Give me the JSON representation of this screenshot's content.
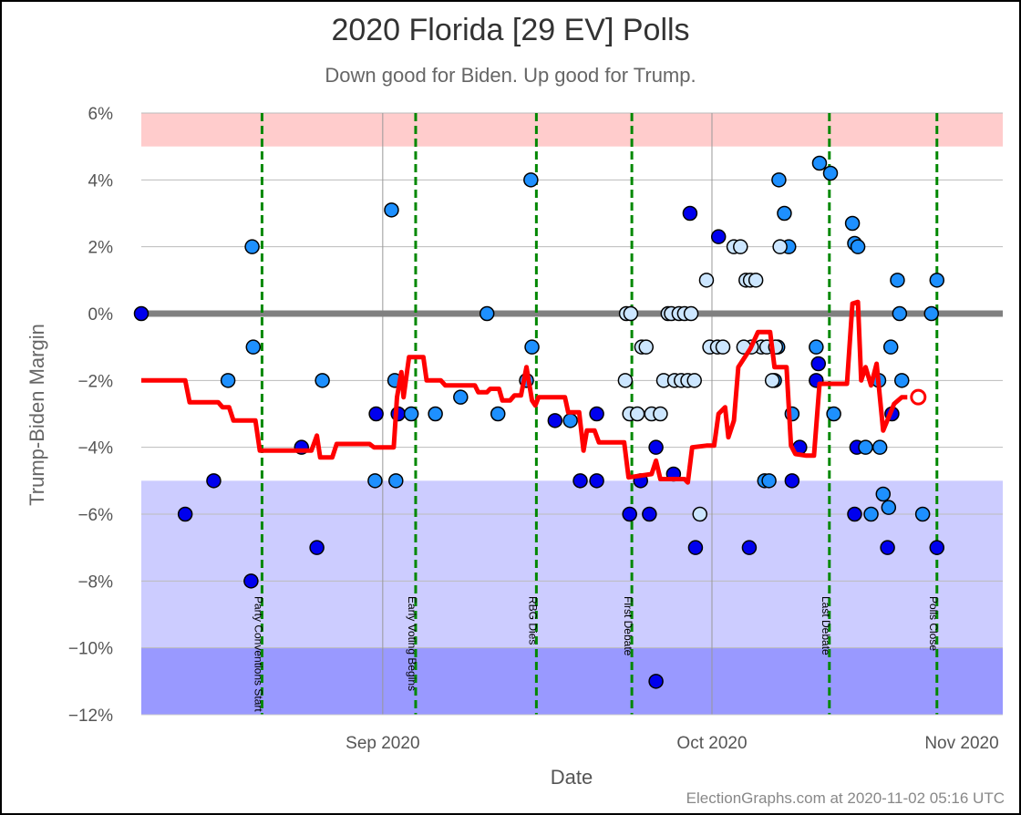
{
  "title": "2020 Florida [29 EV] Polls",
  "subtitle": "Down good for Biden. Up good for Trump.",
  "credit": "ElectionGraphs.com at 2020-11-02 05:16 UTC",
  "chart_data": {
    "type": "scatter",
    "title": "2020 Florida [29 EV] Polls",
    "subtitle": "Down good for Biden. Up good for Trump.",
    "xlabel": "Date",
    "ylabel": "Trump-Biden Margin",
    "xlim": [
      0,
      78.5
    ],
    "ylim": [
      -12,
      6
    ],
    "y_ticks": [
      {
        "value": 6,
        "label": "6%"
      },
      {
        "value": 4,
        "label": "4%"
      },
      {
        "value": 2,
        "label": "2%"
      },
      {
        "value": 0,
        "label": "0%"
      },
      {
        "value": -2,
        "label": "−2%"
      },
      {
        "value": -4,
        "label": "−4%"
      },
      {
        "value": -6,
        "label": "−6%"
      },
      {
        "value": -8,
        "label": "−8%"
      },
      {
        "value": -10,
        "label": "−10%"
      },
      {
        "value": -12,
        "label": "−12%"
      }
    ],
    "x_ticks": [
      {
        "value": 22,
        "label": "Sep 2020"
      },
      {
        "value": 52,
        "label": "Oct 2020"
      },
      {
        "value": 83,
        "label": "Nov 2020"
      }
    ],
    "bands": [
      {
        "from": 5,
        "to": 6,
        "color": "#ffcccc"
      },
      {
        "from": -10,
        "to": -5,
        "color": "#ccccff"
      },
      {
        "from": -12,
        "to": -10,
        "color": "#9999ff"
      }
    ],
    "events": [
      {
        "x": 11,
        "label": "Party Conventions Start"
      },
      {
        "x": 25,
        "label": "Early Voting Begins"
      },
      {
        "x": 36,
        "label": "RBG Dies"
      },
      {
        "x": 44.7,
        "label": "First Debate"
      },
      {
        "x": 62.7,
        "label": "Last Debate"
      },
      {
        "x": 72.5,
        "label": "Polls Close"
      }
    ],
    "grid": true,
    "colors": {
      "trend": "#ff0000",
      "event_line": "#008800",
      "zero_line": "#808080",
      "older": "#0000ee",
      "mid": "#1e90ff",
      "recent": "#cce6ff"
    },
    "series": [
      {
        "name": "",
        "color": "#0000ee",
        "points": [
          [
            0,
            0
          ],
          [
            4,
            -6
          ],
          [
            6.6,
            -5
          ],
          [
            10,
            -8
          ],
          [
            14.6,
            -4
          ],
          [
            16,
            -7
          ],
          [
            21.4,
            -3
          ],
          [
            23.4,
            -3
          ],
          [
            37.7,
            -3.2
          ],
          [
            40,
            -5
          ],
          [
            41.5,
            -3
          ],
          [
            41.5,
            -5
          ],
          [
            44.5,
            -6
          ],
          [
            45.5,
            -5
          ],
          [
            46.3,
            -6
          ],
          [
            46.9,
            -4
          ],
          [
            46.9,
            -11
          ],
          [
            48.5,
            -4.8
          ],
          [
            50,
            3
          ],
          [
            50.5,
            -7
          ],
          [
            52.6,
            2.3
          ],
          [
            55.4,
            -7
          ],
          [
            59.3,
            -5
          ],
          [
            60,
            -4
          ],
          [
            61.5,
            -2
          ],
          [
            61.7,
            -1.5
          ],
          [
            65.2,
            -4
          ],
          [
            65,
            -6
          ],
          [
            68,
            -7
          ],
          [
            68.4,
            -3
          ],
          [
            72.5,
            -7
          ]
        ]
      },
      {
        "name": "",
        "color": "#1e90ff",
        "points": [
          [
            10.1,
            2
          ],
          [
            10.2,
            -1
          ],
          [
            7.9,
            -2
          ],
          [
            16.5,
            -2
          ],
          [
            21.3,
            -5
          ],
          [
            22.8,
            3.1
          ],
          [
            23.1,
            -2
          ],
          [
            23.2,
            -5
          ],
          [
            24.6,
            -3
          ],
          [
            26.8,
            -3
          ],
          [
            29.1,
            -2.5
          ],
          [
            31.5,
            0
          ],
          [
            32.5,
            -3
          ],
          [
            35.1,
            -2
          ],
          [
            35.5,
            4
          ],
          [
            35.6,
            -1
          ],
          [
            39.1,
            -3.2
          ],
          [
            58,
            -1
          ],
          [
            56.8,
            -5
          ],
          [
            57.2,
            -5
          ],
          [
            57.7,
            -2
          ],
          [
            58.1,
            4
          ],
          [
            58.6,
            3
          ],
          [
            59,
            2
          ],
          [
            59.3,
            -3
          ],
          [
            61.5,
            -1
          ],
          [
            61.8,
            4.5
          ],
          [
            62.8,
            4.2
          ],
          [
            63.1,
            -3
          ],
          [
            64.8,
            2.7
          ],
          [
            65,
            2.1
          ],
          [
            65.3,
            2
          ],
          [
            66,
            -4
          ],
          [
            66.5,
            -6
          ],
          [
            67.2,
            -2
          ],
          [
            67.3,
            -4
          ],
          [
            67.6,
            -5.4
          ],
          [
            68.1,
            -5.8
          ],
          [
            68.3,
            -1
          ],
          [
            68.9,
            1
          ],
          [
            69.1,
            0
          ],
          [
            69.3,
            -2
          ],
          [
            71.2,
            -6
          ],
          [
            72,
            0
          ],
          [
            72.5,
            1
          ]
        ]
      },
      {
        "name": "",
        "color": "#cce6ff",
        "points": [
          [
            44.2,
            0
          ],
          [
            44.6,
            0
          ],
          [
            44.1,
            -2
          ],
          [
            44.5,
            -3
          ],
          [
            45.2,
            -3
          ],
          [
            45.6,
            -1
          ],
          [
            46,
            -1
          ],
          [
            46.5,
            -3
          ],
          [
            47.3,
            -3
          ],
          [
            47.6,
            -2
          ],
          [
            48,
            0
          ],
          [
            48.3,
            0
          ],
          [
            48.6,
            -2
          ],
          [
            49,
            0
          ],
          [
            49.2,
            -2
          ],
          [
            49.5,
            0
          ],
          [
            49.8,
            -2
          ],
          [
            50.1,
            0
          ],
          [
            50.4,
            -2
          ],
          [
            50.9,
            -6
          ],
          [
            51.5,
            1
          ],
          [
            51.8,
            -1
          ],
          [
            52.5,
            -1
          ],
          [
            53,
            -1
          ],
          [
            54,
            2
          ],
          [
            54.6,
            2
          ],
          [
            55.1,
            1
          ],
          [
            55.5,
            1
          ],
          [
            56,
            1
          ],
          [
            56.5,
            -1
          ],
          [
            57,
            -1
          ],
          [
            57.5,
            -2
          ],
          [
            57.8,
            -1
          ],
          [
            58.2,
            2
          ],
          [
            55.6,
            -1
          ],
          [
            54.9,
            -1
          ]
        ]
      }
    ],
    "trend": [
      [
        0,
        -2
      ],
      [
        4,
        -2
      ],
      [
        4.4,
        -2.65
      ],
      [
        7,
        -2.65
      ],
      [
        7.4,
        -2.8
      ],
      [
        8,
        -2.8
      ],
      [
        8.4,
        -3.2
      ],
      [
        10.4,
        -3.2
      ],
      [
        10.8,
        -4.1
      ],
      [
        15.5,
        -4.1
      ],
      [
        16,
        -3.65
      ],
      [
        16.3,
        -4.3
      ],
      [
        17.4,
        -4.3
      ],
      [
        17.8,
        -3.9
      ],
      [
        20.8,
        -3.9
      ],
      [
        21.2,
        -4
      ],
      [
        23,
        -4
      ],
      [
        23.3,
        -2.5
      ],
      [
        23.7,
        -1.75
      ],
      [
        23.9,
        -2.5
      ],
      [
        24.4,
        -1.3
      ],
      [
        25.7,
        -1.3
      ],
      [
        26,
        -2
      ],
      [
        27.3,
        -2
      ],
      [
        27.7,
        -2.15
      ],
      [
        30.4,
        -2.15
      ],
      [
        30.7,
        -2.35
      ],
      [
        31.5,
        -2.35
      ],
      [
        31.8,
        -2.25
      ],
      [
        32.6,
        -2.25
      ],
      [
        32.9,
        -2.6
      ],
      [
        33.6,
        -2.6
      ],
      [
        34,
        -2.45
      ],
      [
        34.6,
        -2.45
      ],
      [
        35.1,
        -1.6
      ],
      [
        35.6,
        -2.6
      ],
      [
        35.9,
        -2.75
      ],
      [
        36.2,
        -2.5
      ],
      [
        38.6,
        -2.5
      ],
      [
        38.9,
        -2.95
      ],
      [
        39.9,
        -2.95
      ],
      [
        40.3,
        -4.1
      ],
      [
        40.6,
        -3.5
      ],
      [
        41.3,
        -3.5
      ],
      [
        41.7,
        -3.85
      ],
      [
        44,
        -3.85
      ],
      [
        44.4,
        -4.9
      ],
      [
        46.5,
        -4.8
      ],
      [
        46.9,
        -4.4
      ],
      [
        47.3,
        -4.95
      ],
      [
        49.5,
        -4.95
      ],
      [
        49.8,
        -5.05
      ],
      [
        50.2,
        -4
      ],
      [
        51.5,
        -3.95
      ],
      [
        52.2,
        -3.95
      ],
      [
        52.6,
        -3
      ],
      [
        53.2,
        -2.8
      ],
      [
        53.5,
        -3.7
      ],
      [
        54,
        -3.2
      ],
      [
        54.4,
        -1.6
      ],
      [
        55.5,
        -1.05
      ],
      [
        56.2,
        -0.55
      ],
      [
        57.3,
        -0.55
      ],
      [
        57.7,
        -1.6
      ],
      [
        58.8,
        -1.6
      ],
      [
        59.2,
        -3.95
      ],
      [
        59.6,
        -4.2
      ],
      [
        60.6,
        -4.25
      ],
      [
        61.3,
        -4.25
      ],
      [
        61.8,
        -2.1
      ],
      [
        63.6,
        -2.1
      ],
      [
        64.3,
        -2.1
      ],
      [
        64.8,
        0.3
      ],
      [
        65.3,
        0.35
      ],
      [
        65.6,
        -2
      ],
      [
        66,
        -1.6
      ],
      [
        66.5,
        -2.15
      ],
      [
        67,
        -1.5
      ],
      [
        67.6,
        -3.5
      ],
      [
        68.6,
        -2.7
      ],
      [
        69.3,
        -2.5
      ],
      [
        69.8,
        -2.5
      ]
    ],
    "trend_end_marker": [
      70.8,
      -2.5
    ]
  }
}
